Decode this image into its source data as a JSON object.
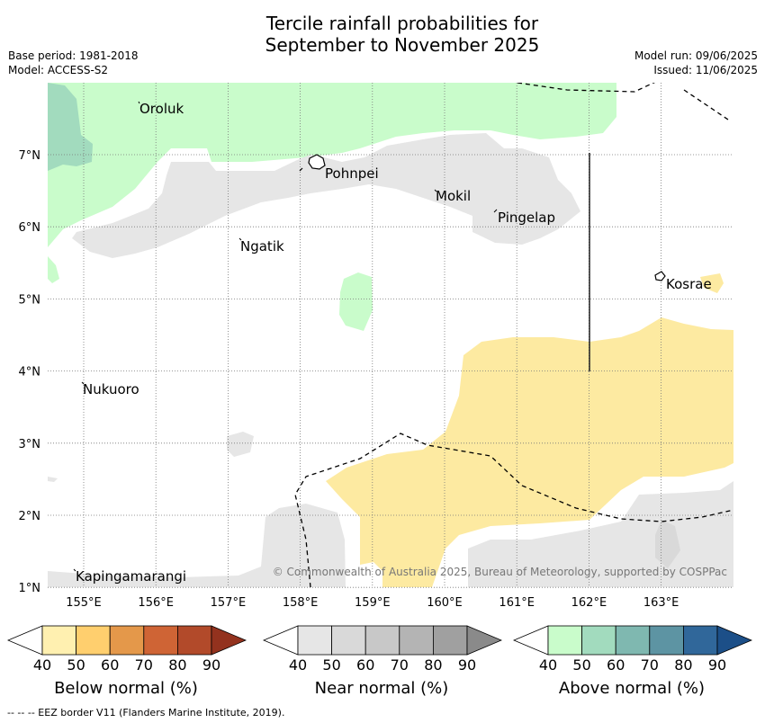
{
  "title": {
    "line1": "Tercile rainfall probabilities for",
    "line2": "September to November 2025"
  },
  "meta": {
    "base_period": "Base period: 1981-2018",
    "model": "Model: ACCESS-S2",
    "model_run": "Model run: 09/06/2025",
    "issued": "Issued: 11/06/2025"
  },
  "map": {
    "lon_ticks": [
      "155°E",
      "156°E",
      "157°E",
      "158°E",
      "159°E",
      "160°E",
      "161°E",
      "162°E",
      "163°E"
    ],
    "lat_ticks": [
      "7°N",
      "6°N",
      "5°N",
      "4°N",
      "3°N",
      "2°N",
      "1°N"
    ],
    "places": [
      "Oroluk",
      "Pohnpei",
      "Mokil",
      "Pingelap",
      "Ngatik",
      "Kosrae",
      "Nukuoro",
      "Kapingamarangi"
    ],
    "copyright": "© Commonwealth of Australia 2025, Bureau of Meteorology, supported by COSPPac"
  },
  "colorbars": [
    {
      "title": "Below normal (%)",
      "ticks": [
        "40",
        "50",
        "60",
        "70",
        "80",
        "90"
      ],
      "colors": [
        "#fff0b0",
        "#ffcf6e",
        "#e4984a",
        "#cf6435",
        "#b24a2a",
        "#93321e"
      ]
    },
    {
      "title": "Near normal (%)",
      "ticks": [
        "40",
        "50",
        "60",
        "70",
        "80",
        "90"
      ],
      "colors": [
        "#e6e6e6",
        "#d9d9d9",
        "#c8c8c8",
        "#b4b4b4",
        "#a0a0a0",
        "#8a8a8a"
      ]
    },
    {
      "title": "Above normal (%)",
      "ticks": [
        "40",
        "50",
        "60",
        "70",
        "80",
        "90"
      ],
      "colors": [
        "#c9fccb",
        "#a2dbbe",
        "#7fb8b0",
        "#5d94a3",
        "#30679a",
        "#1c4f88"
      ]
    }
  ],
  "footer": "--  --  -- EEZ border V11 (Flanders Marine Institute, 2019)."
}
